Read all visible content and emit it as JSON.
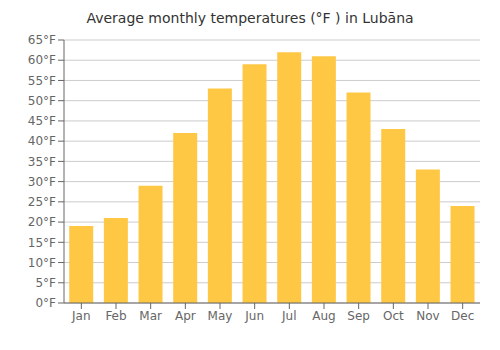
{
  "chart_data": {
    "type": "bar",
    "title": "Average monthly temperatures (°F ) in Lubāna",
    "categories": [
      "Jan",
      "Feb",
      "Mar",
      "Apr",
      "May",
      "Jun",
      "Jul",
      "Aug",
      "Sep",
      "Oct",
      "Nov",
      "Dec"
    ],
    "values": [
      19,
      21,
      29,
      42,
      53,
      59,
      62,
      61,
      52,
      43,
      33,
      24
    ],
    "color": "#FFC844",
    "ylim": [
      0,
      65
    ],
    "yticks": [
      {
        "value": 0,
        "label": "0°F"
      },
      {
        "value": 5,
        "label": "5°F"
      },
      {
        "value": 10,
        "label": "10°F"
      },
      {
        "value": 15,
        "label": "15°F"
      },
      {
        "value": 20,
        "label": "20°F"
      },
      {
        "value": 25,
        "label": "25°F"
      },
      {
        "value": 30,
        "label": "30°F"
      },
      {
        "value": 35,
        "label": "35°F"
      },
      {
        "value": 40,
        "label": "40°F"
      },
      {
        "value": 45,
        "label": "45°F"
      },
      {
        "value": 50,
        "label": "50°F"
      },
      {
        "value": 55,
        "label": "55°F"
      },
      {
        "value": 60,
        "label": "60°F"
      },
      {
        "value": 65,
        "label": "65°F"
      }
    ],
    "grid": true
  }
}
